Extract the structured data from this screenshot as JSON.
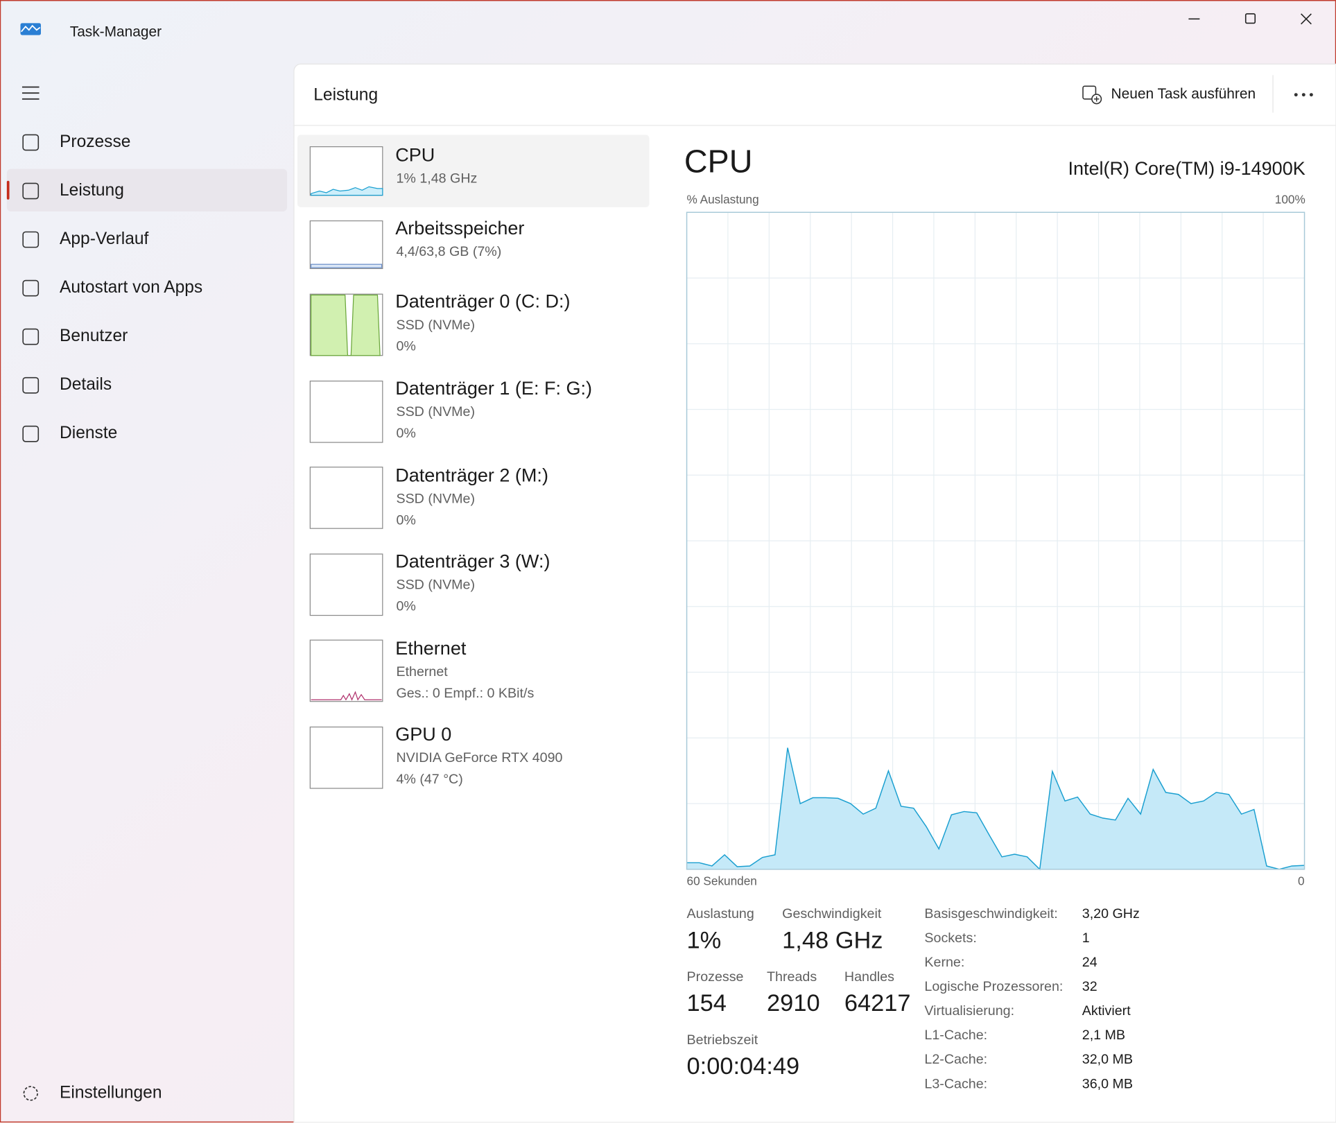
{
  "window": {
    "title": "Task-Manager"
  },
  "nav": {
    "items": [
      "Prozesse",
      "Leistung",
      "App-Verlauf",
      "Autostart von Apps",
      "Benutzer",
      "Details",
      "Dienste"
    ],
    "settings": "Einstellungen"
  },
  "header": {
    "title": "Leistung",
    "action": "Neuen Task ausführen"
  },
  "devices": [
    {
      "name": "CPU",
      "lines": [
        "1%  1,48 GHz"
      ]
    },
    {
      "name": "Arbeitsspeicher",
      "lines": [
        "4,4/63,8 GB (7%)"
      ]
    },
    {
      "name": "Datenträger 0 (C: D:)",
      "lines": [
        "SSD (NVMe)",
        "0%"
      ]
    },
    {
      "name": "Datenträger 1 (E: F: G:)",
      "lines": [
        "SSD (NVMe)",
        "0%"
      ]
    },
    {
      "name": "Datenträger 2 (M:)",
      "lines": [
        "SSD (NVMe)",
        "0%"
      ]
    },
    {
      "name": "Datenträger 3 (W:)",
      "lines": [
        "SSD (NVMe)",
        "0%"
      ]
    },
    {
      "name": "Ethernet",
      "lines": [
        "Ethernet",
        "Ges.: 0  Empf.: 0 KBit/s"
      ]
    },
    {
      "name": "GPU 0",
      "lines": [
        "NVIDIA GeForce RTX 4090",
        "4%  (47 °C)"
      ]
    }
  ],
  "detail": {
    "title": "CPU",
    "model": "Intel(R) Core(TM) i9-14900K"
  },
  "chart_data": {
    "type": "area",
    "y_label": "% Auslastung",
    "y_top_label": "100%",
    "x_left_label": "60 Sekunden",
    "x_right_label": "0",
    "color": "#1a9fd0",
    "ylim": [
      0,
      100
    ],
    "yticks": [
      0,
      10,
      20,
      30,
      40,
      50,
      60,
      70,
      80,
      90,
      100
    ],
    "grid": true,
    "values": [
      1.0,
      1.0,
      0.5,
      2.2,
      0.4,
      0.5,
      1.8,
      2.2,
      18.5,
      10,
      10.9,
      10.9,
      10.8,
      10,
      8.4,
      9.3,
      15,
      9.6,
      9.3,
      6.5,
      3.1,
      8.3,
      8.8,
      8.6,
      5.2,
      1.9,
      2.3,
      1.9,
      0,
      14.9,
      10.4,
      11,
      8.4,
      7.8,
      7.5,
      10.8,
      8.4,
      15.2,
      11.7,
      11.4,
      10,
      10.4,
      11.7,
      11.4,
      8.4,
      9.1,
      0.5,
      0,
      0.5,
      0.6
    ]
  },
  "stats": [
    {
      "label": "Auslastung",
      "value": "1%"
    },
    {
      "label": "Geschwindigkeit",
      "value": "1,48 GHz"
    },
    {
      "label": "Prozesse",
      "value": "154"
    },
    {
      "label": "Threads",
      "value": "2910"
    },
    {
      "label": "Handles",
      "value": "64217"
    },
    {
      "label": "Betriebszeit",
      "value": "0:00:04:49"
    }
  ],
  "specs": [
    [
      "Basisgeschwindigkeit:",
      "3,20 GHz"
    ],
    [
      "Sockets:",
      "1"
    ],
    [
      "Kerne:",
      "24"
    ],
    [
      "Logische Prozessoren:",
      "32"
    ],
    [
      "Virtualisierung:",
      "Aktiviert"
    ],
    [
      "L1-Cache:",
      "2,1 MB"
    ],
    [
      "L2-Cache:",
      "32,0 MB"
    ],
    [
      "L3-Cache:",
      "36,0 MB"
    ]
  ]
}
